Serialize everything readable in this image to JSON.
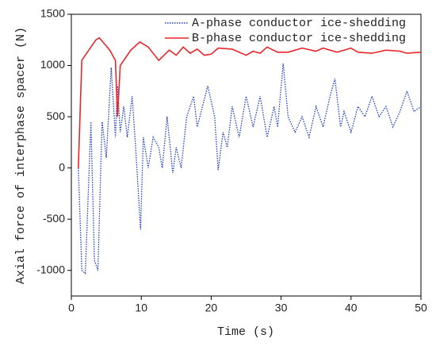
{
  "chart_data": {
    "type": "line",
    "xlabel": "Time (s)",
    "ylabel": "Axial force of interphase spacer (N)",
    "xlim": [
      0,
      50
    ],
    "xticks": [
      0,
      10,
      20,
      30,
      40,
      50
    ],
    "ylim": [
      -1250,
      1500
    ],
    "yticks": [
      -1000,
      -500,
      0,
      500,
      1000,
      1500
    ],
    "legend": "upper right",
    "series": [
      {
        "name": "A-phase conductor ice-shedding",
        "color": "#1f3fbf",
        "style": "dotted",
        "x": [
          1,
          1.5,
          2,
          2.8,
          3.3,
          3.8,
          4.4,
          5,
          5.7,
          6.3,
          6.6,
          7,
          7.5,
          8,
          8.7,
          9.2,
          9.9,
          10.3,
          11,
          11.7,
          12.5,
          13,
          13.7,
          14.5,
          15,
          15.7,
          16.5,
          17.5,
          18,
          19.5,
          20.5,
          21,
          21.7,
          22.3,
          23,
          24,
          25,
          26,
          27,
          28,
          29,
          29.5,
          30.3,
          31,
          32,
          33,
          34,
          35,
          36,
          37,
          37.7,
          38.5,
          39,
          40,
          41,
          42,
          43,
          44,
          45,
          46,
          47,
          48,
          49,
          50
        ],
        "values": [
          0,
          -1000,
          -1030,
          450,
          -900,
          -1000,
          450,
          100,
          980,
          300,
          800,
          350,
          600,
          300,
          700,
          200,
          -600,
          300,
          0,
          300,
          200,
          0,
          500,
          -50,
          200,
          0,
          500,
          700,
          400,
          800,
          500,
          -20,
          350,
          200,
          600,
          300,
          700,
          400,
          700,
          300,
          600,
          400,
          1020,
          500,
          350,
          500,
          300,
          600,
          400,
          700,
          870,
          400,
          550,
          350,
          600,
          500,
          700,
          500,
          600,
          400,
          550,
          750,
          550,
          600
        ]
      },
      {
        "name": "B-phase conductor ice-shedding",
        "color": "#e8262a",
        "style": "solid",
        "x": [
          1,
          1.5,
          2,
          3.5,
          4,
          5.5,
          6.3,
          6.6,
          7,
          8.5,
          9.8,
          11,
          12.5,
          14,
          15,
          16,
          17,
          18,
          19,
          20,
          21,
          23,
          25,
          26,
          27,
          28,
          29.5,
          31,
          33,
          35,
          36,
          38,
          40,
          41,
          43,
          45,
          47,
          48,
          50
        ],
        "values": [
          0,
          1050,
          1100,
          1250,
          1270,
          1150,
          1050,
          500,
          1000,
          1150,
          1230,
          1180,
          1050,
          1150,
          1100,
          1180,
          1120,
          1160,
          1100,
          1110,
          1170,
          1160,
          1100,
          1140,
          1120,
          1180,
          1130,
          1130,
          1170,
          1140,
          1170,
          1130,
          1170,
          1130,
          1120,
          1150,
          1140,
          1120,
          1130
        ]
      }
    ]
  }
}
